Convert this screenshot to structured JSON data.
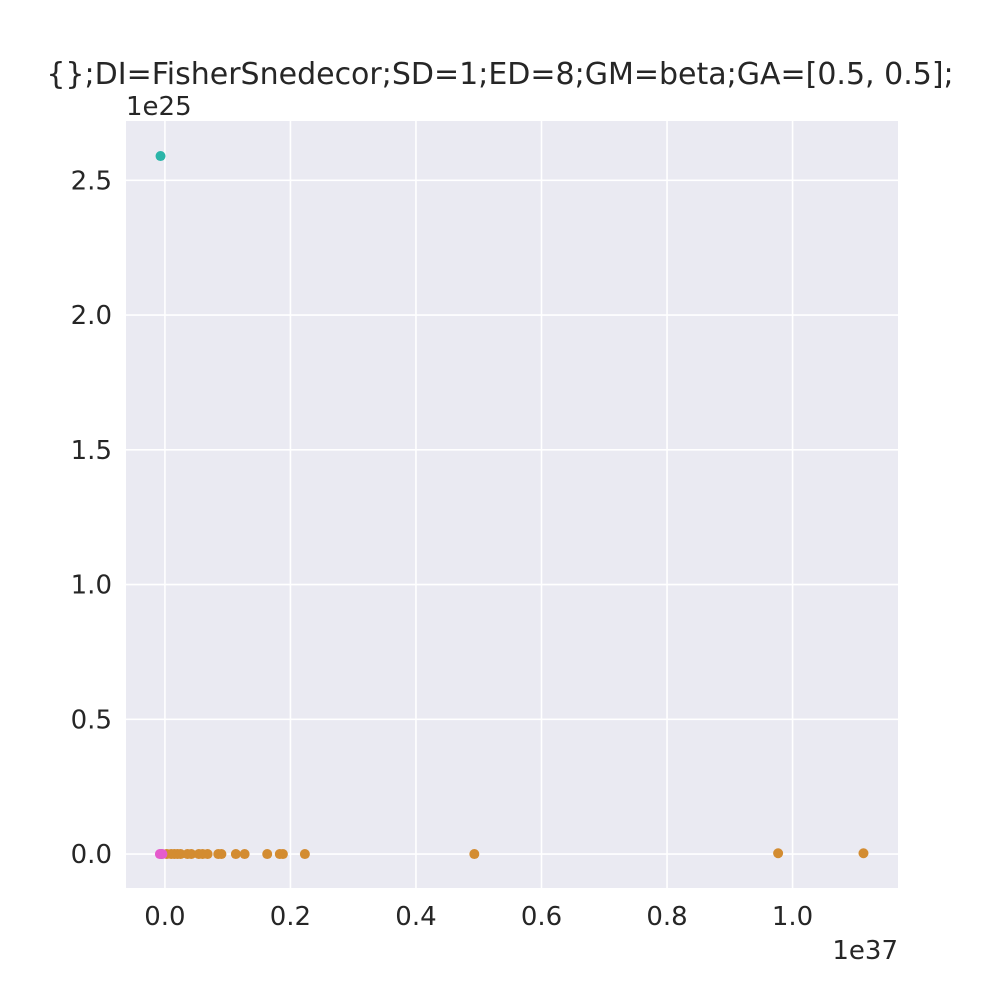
{
  "colors": {
    "background": "#EAEAF2",
    "grid": "#FFFFFF",
    "text": "#262626",
    "teal": "#2BB5A9",
    "orange": "#D38C31",
    "pink": "#E55BCC"
  },
  "chart_data": {
    "type": "scatter",
    "title": "{};DI=FisherSnedecor;SD=1;ED=8;GM=beta;GA=[0.5, 0.5];",
    "xlabel": "",
    "ylabel": "",
    "x_offset_label": "1e37",
    "y_offset_label": "1e25",
    "x_scale": 1e+37,
    "y_scale": 1e+25,
    "xlim": [
      -0.062,
      1.168
    ],
    "ylim": [
      -0.126,
      2.72
    ],
    "x_ticks": [
      0.0,
      0.2,
      0.4,
      0.6,
      0.8,
      1.0
    ],
    "x_tick_labels": [
      "0.0",
      "0.2",
      "0.4",
      "0.6",
      "0.8",
      "1.0"
    ],
    "y_ticks": [
      0.0,
      0.5,
      1.0,
      1.5,
      2.0,
      2.5
    ],
    "y_tick_labels": [
      "0.0",
      "0.5",
      "1.0",
      "1.5",
      "2.0",
      "2.5"
    ],
    "grid": true,
    "legend": "none",
    "series": [
      {
        "color": "#2BB5A9",
        "points": [
          [
            -0.007,
            2.59
          ],
          [
            -0.006,
            0.0
          ]
        ]
      },
      {
        "color": "#D38C31",
        "points": [
          [
            0.003,
            0.0
          ],
          [
            0.01,
            0.0
          ],
          [
            0.015,
            0.0
          ],
          [
            0.02,
            0.0
          ],
          [
            0.025,
            0.0
          ],
          [
            0.036,
            0.0
          ],
          [
            0.042,
            0.0
          ],
          [
            0.054,
            0.0
          ],
          [
            0.06,
            0.0
          ],
          [
            0.068,
            0.0
          ],
          [
            0.085,
            0.0
          ],
          [
            0.09,
            0.0
          ],
          [
            0.113,
            0.0
          ],
          [
            0.127,
            0.0
          ],
          [
            0.163,
            0.0
          ],
          [
            0.183,
            0.0
          ],
          [
            0.188,
            0.0
          ],
          [
            0.223,
            0.0
          ],
          [
            0.493,
            0.0
          ],
          [
            0.977,
            0.003
          ],
          [
            1.113,
            0.003
          ]
        ]
      },
      {
        "color": "#E55BCC",
        "points": [
          [
            -0.008,
            0.0
          ],
          [
            -0.004,
            0.0
          ]
        ]
      }
    ]
  }
}
